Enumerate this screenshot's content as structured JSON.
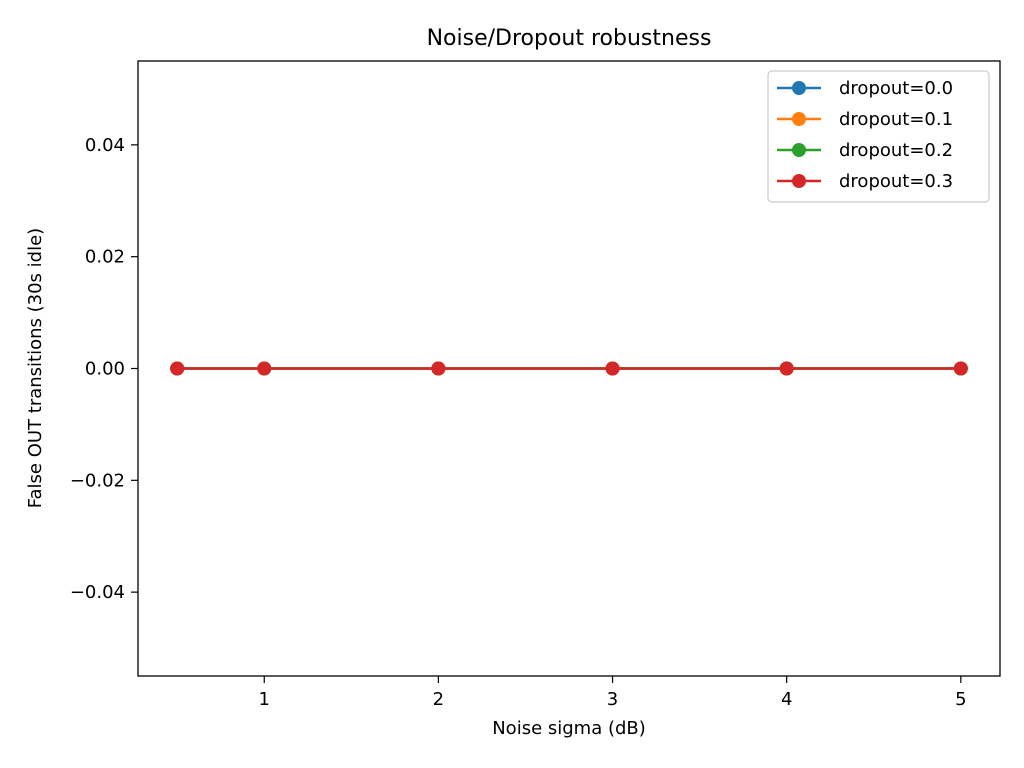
{
  "chart_data": {
    "type": "line",
    "title": "Noise/Dropout robustness",
    "xlabel": "Noise sigma (dB)",
    "ylabel": "False OUT transitions (30s idle)",
    "x": [
      0.5,
      1,
      2,
      3,
      4,
      5
    ],
    "series": [
      {
        "name": "dropout=0.0",
        "color": "#1f77b4",
        "values": [
          0,
          0,
          0,
          0,
          0,
          0
        ]
      },
      {
        "name": "dropout=0.1",
        "color": "#ff7f0e",
        "values": [
          0,
          0,
          0,
          0,
          0,
          0
        ]
      },
      {
        "name": "dropout=0.2",
        "color": "#2ca02c",
        "values": [
          0,
          0,
          0,
          0,
          0,
          0
        ]
      },
      {
        "name": "dropout=0.3",
        "color": "#d62728",
        "values": [
          0,
          0,
          0,
          0,
          0,
          0
        ]
      }
    ],
    "xlim": [
      0.275,
      5.225
    ],
    "ylim": [
      -0.055,
      0.055
    ],
    "xticks": [
      1,
      2,
      3,
      4,
      5
    ],
    "xtick_labels": [
      "1",
      "2",
      "3",
      "4",
      "5"
    ],
    "yticks": [
      -0.04,
      -0.02,
      0.0,
      0.02,
      0.04
    ],
    "ytick_labels": [
      "−0.04",
      "−0.02",
      "0.00",
      "0.02",
      "0.04"
    ],
    "grid": false,
    "legend_position": "top-right",
    "marker": "circle"
  }
}
